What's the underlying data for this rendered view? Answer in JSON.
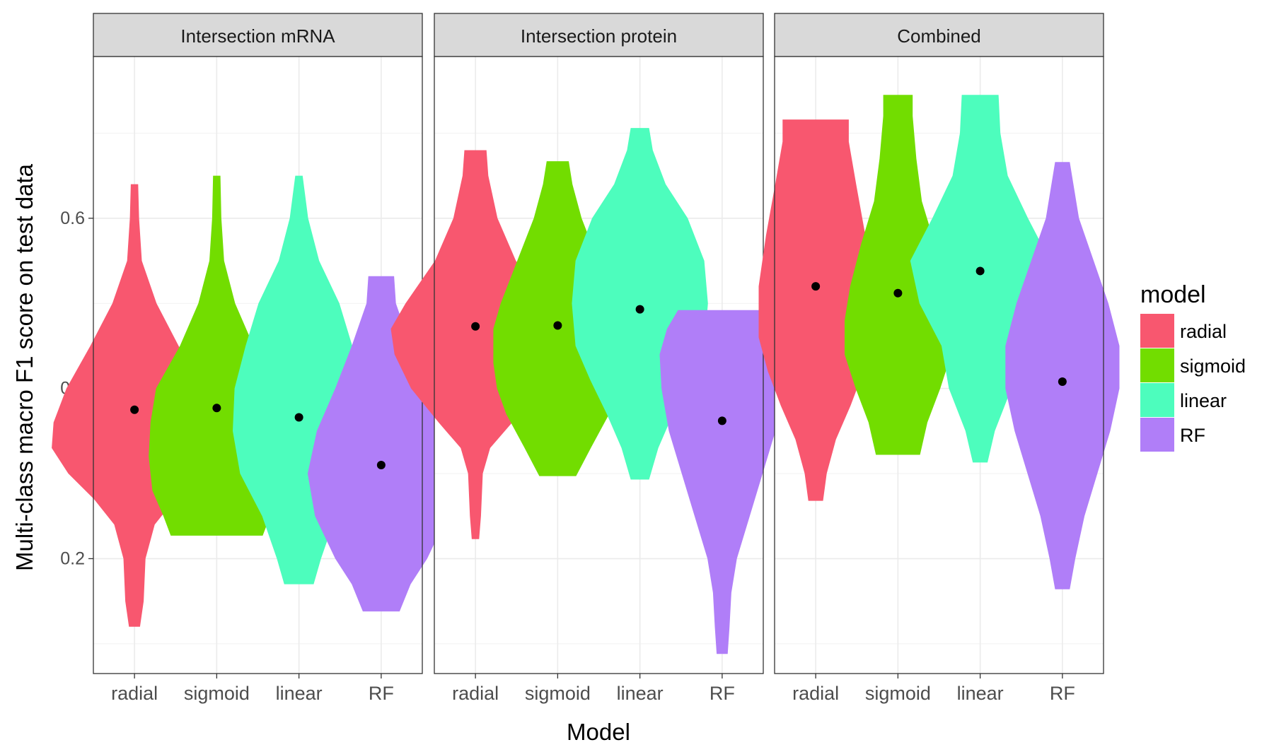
{
  "chart_data": {
    "type": "violin",
    "xlabel": "Model",
    "ylabel": "Multi-class macro F1 score on test data",
    "ylim": [
      0.065,
      0.79
    ],
    "yticks": [
      0.2,
      0.4,
      0.6
    ],
    "ytick_labels": [
      "0.2",
      "0.4",
      "0.6"
    ],
    "grid": true,
    "categories": [
      "radial",
      "sigmoid",
      "linear",
      "RF"
    ],
    "colors": {
      "radial": "#F8576F",
      "sigmoid": "#72DD00",
      "linear": "#4DFDBD",
      "RF": "#B07EF8"
    },
    "legend": {
      "title": "model",
      "position": "right",
      "items": [
        "radial",
        "sigmoid",
        "linear",
        "RF"
      ]
    },
    "panels": [
      {
        "title": "Intersection mRNA",
        "violins": [
          {
            "model": "radial",
            "mean": 0.375,
            "min": 0.12,
            "max": 0.64,
            "profile": [
              [
                0.12,
                0.003
              ],
              [
                0.15,
                0.005
              ],
              [
                0.2,
                0.006
              ],
              [
                0.24,
                0.011
              ],
              [
                0.27,
                0.022
              ],
              [
                0.3,
                0.036
              ],
              [
                0.33,
                0.045
              ],
              [
                0.36,
                0.044
              ],
              [
                0.4,
                0.037
              ],
              [
                0.45,
                0.024
              ],
              [
                0.5,
                0.012
              ],
              [
                0.55,
                0.004
              ],
              [
                0.6,
                0.0025
              ],
              [
                0.64,
                0.002
              ]
            ]
          },
          {
            "model": "sigmoid",
            "mean": 0.377,
            "min": 0.227,
            "max": 0.65,
            "profile": [
              [
                0.227,
                0.025
              ],
              [
                0.25,
                0.029
              ],
              [
                0.28,
                0.035
              ],
              [
                0.32,
                0.037
              ],
              [
                0.36,
                0.036
              ],
              [
                0.4,
                0.033
              ],
              [
                0.45,
                0.02
              ],
              [
                0.5,
                0.01
              ],
              [
                0.55,
                0.004
              ],
              [
                0.6,
                0.0025
              ],
              [
                0.65,
                0.002
              ]
            ]
          },
          {
            "model": "linear",
            "mean": 0.366,
            "min": 0.17,
            "max": 0.65,
            "profile": [
              [
                0.17,
                0.008
              ],
              [
                0.2,
                0.012
              ],
              [
                0.25,
                0.02
              ],
              [
                0.3,
                0.032
              ],
              [
                0.35,
                0.036
              ],
              [
                0.4,
                0.035
              ],
              [
                0.45,
                0.029
              ],
              [
                0.5,
                0.022
              ],
              [
                0.55,
                0.011
              ],
              [
                0.6,
                0.005
              ],
              [
                0.65,
                0.002
              ]
            ]
          },
          {
            "model": "RF",
            "mean": 0.31,
            "min": 0.138,
            "max": 0.532,
            "profile": [
              [
                0.138,
                0.01
              ],
              [
                0.17,
                0.016
              ],
              [
                0.2,
                0.025
              ],
              [
                0.25,
                0.036
              ],
              [
                0.3,
                0.04
              ],
              [
                0.35,
                0.035
              ],
              [
                0.4,
                0.025
              ],
              [
                0.45,
                0.016
              ],
              [
                0.5,
                0.008
              ],
              [
                0.532,
                0.007
              ]
            ]
          }
        ]
      },
      {
        "title": "Intersection protein",
        "violins": [
          {
            "model": "radial",
            "mean": 0.473,
            "min": 0.223,
            "max": 0.68,
            "profile": [
              [
                0.223,
                0.002
              ],
              [
                0.25,
                0.003
              ],
              [
                0.3,
                0.004
              ],
              [
                0.33,
                0.008
              ],
              [
                0.36,
                0.02
              ],
              [
                0.4,
                0.035
              ],
              [
                0.44,
                0.044
              ],
              [
                0.47,
                0.046
              ],
              [
                0.5,
                0.038
              ],
              [
                0.55,
                0.022
              ],
              [
                0.6,
                0.012
              ],
              [
                0.65,
                0.007
              ],
              [
                0.68,
                0.006
              ]
            ]
          },
          {
            "model": "sigmoid",
            "mean": 0.474,
            "min": 0.297,
            "max": 0.667,
            "profile": [
              [
                0.297,
                0.01
              ],
              [
                0.33,
                0.018
              ],
              [
                0.37,
                0.028
              ],
              [
                0.4,
                0.033
              ],
              [
                0.43,
                0.035
              ],
              [
                0.47,
                0.035
              ],
              [
                0.5,
                0.031
              ],
              [
                0.55,
                0.022
              ],
              [
                0.6,
                0.013
              ],
              [
                0.64,
                0.008
              ],
              [
                0.667,
                0.006
              ]
            ]
          },
          {
            "model": "linear",
            "mean": 0.493,
            "min": 0.293,
            "max": 0.706,
            "profile": [
              [
                0.293,
                0.005
              ],
              [
                0.33,
                0.01
              ],
              [
                0.37,
                0.018
              ],
              [
                0.41,
                0.027
              ],
              [
                0.45,
                0.035
              ],
              [
                0.5,
                0.037
              ],
              [
                0.55,
                0.035
              ],
              [
                0.6,
                0.026
              ],
              [
                0.64,
                0.014
              ],
              [
                0.68,
                0.007
              ],
              [
                0.706,
                0.005
              ]
            ]
          },
          {
            "model": "RF",
            "mean": 0.362,
            "min": 0.088,
            "max": 0.492,
            "profile": [
              [
                0.088,
                0.003
              ],
              [
                0.12,
                0.004
              ],
              [
                0.16,
                0.005
              ],
              [
                0.2,
                0.008
              ],
              [
                0.25,
                0.015
              ],
              [
                0.3,
                0.022
              ],
              [
                0.35,
                0.029
              ],
              [
                0.4,
                0.033
              ],
              [
                0.44,
                0.034
              ],
              [
                0.47,
                0.03
              ],
              [
                0.492,
                0.024
              ]
            ]
          }
        ]
      },
      {
        "title": "Combined",
        "violins": [
          {
            "model": "radial",
            "mean": 0.52,
            "min": 0.268,
            "max": 0.716,
            "profile": [
              [
                0.268,
                0.004
              ],
              [
                0.3,
                0.006
              ],
              [
                0.34,
                0.011
              ],
              [
                0.38,
                0.019
              ],
              [
                0.42,
                0.026
              ],
              [
                0.46,
                0.031
              ],
              [
                0.52,
                0.031
              ],
              [
                0.58,
                0.027
              ],
              [
                0.64,
                0.022
              ],
              [
                0.69,
                0.018
              ],
              [
                0.716,
                0.018
              ]
            ]
          },
          {
            "model": "sigmoid",
            "mean": 0.512,
            "min": 0.322,
            "max": 0.745,
            "profile": [
              [
                0.322,
                0.012
              ],
              [
                0.36,
                0.016
              ],
              [
                0.4,
                0.023
              ],
              [
                0.44,
                0.029
              ],
              [
                0.48,
                0.029
              ],
              [
                0.52,
                0.026
              ],
              [
                0.57,
                0.02
              ],
              [
                0.62,
                0.013
              ],
              [
                0.67,
                0.01
              ],
              [
                0.72,
                0.008
              ],
              [
                0.745,
                0.008
              ]
            ]
          },
          {
            "model": "linear",
            "mean": 0.538,
            "min": 0.313,
            "max": 0.745,
            "profile": [
              [
                0.313,
                0.004
              ],
              [
                0.35,
                0.008
              ],
              [
                0.4,
                0.017
              ],
              [
                0.45,
                0.021
              ],
              [
                0.5,
                0.033
              ],
              [
                0.55,
                0.038
              ],
              [
                0.6,
                0.026
              ],
              [
                0.65,
                0.015
              ],
              [
                0.7,
                0.011
              ],
              [
                0.745,
                0.01
              ]
            ]
          },
          {
            "model": "RF",
            "mean": 0.408,
            "min": 0.164,
            "max": 0.666,
            "profile": [
              [
                0.164,
                0.004
              ],
              [
                0.2,
                0.007
              ],
              [
                0.25,
                0.012
              ],
              [
                0.3,
                0.019
              ],
              [
                0.35,
                0.026
              ],
              [
                0.4,
                0.031
              ],
              [
                0.45,
                0.031
              ],
              [
                0.5,
                0.025
              ],
              [
                0.55,
                0.017
              ],
              [
                0.6,
                0.009
              ],
              [
                0.666,
                0.004
              ]
            ]
          }
        ]
      }
    ]
  }
}
